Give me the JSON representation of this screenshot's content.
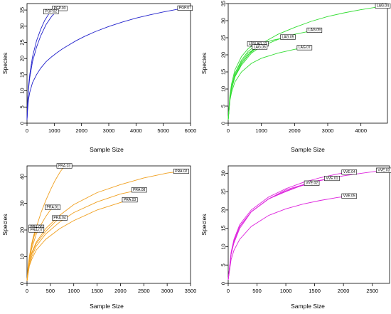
{
  "chart_data": [
    {
      "type": "line",
      "xlabel": "Sample Size",
      "ylabel": "Species",
      "xlim": [
        0,
        6000
      ],
      "ylim": [
        0,
        37
      ],
      "xticks": [
        0,
        1000,
        2000,
        3000,
        4000,
        5000,
        6000
      ],
      "yticks": [
        0,
        5,
        10,
        15,
        20,
        25,
        30,
        35
      ],
      "color": "#2222cc",
      "series": [
        {
          "name": "PGP.07",
          "x": [
            0,
            20,
            50,
            100,
            200,
            350,
            500,
            700,
            900,
            1100,
            1300,
            1500,
            1800,
            2100,
            2500,
            3000,
            3500,
            4000,
            4500,
            5000,
            5500,
            5800
          ],
          "y": [
            1,
            4,
            7,
            9.5,
            12.5,
            15,
            17,
            19,
            20.5,
            21.8,
            23,
            24,
            25.5,
            26.8,
            28.3,
            29.9,
            31.3,
            32.5,
            33.5,
            34.4,
            35.2,
            35.6
          ]
        },
        {
          "name": "PGP.03",
          "x": [
            0,
            20,
            50,
            100,
            200,
            350,
            500,
            700,
            900,
            1100,
            1200
          ],
          "y": [
            1,
            6,
            10,
            14,
            19,
            23.5,
            27,
            30.5,
            33,
            34.8,
            35.5
          ]
        },
        {
          "name": "PGP.02",
          "x": [
            0,
            20,
            50,
            100,
            200,
            350,
            500,
            650,
            800,
            880
          ],
          "y": [
            1,
            6,
            11,
            15,
            20.5,
            25.5,
            29,
            31.8,
            33.8,
            34.5
          ]
        }
      ]
    },
    {
      "type": "line",
      "xlabel": "Sample Size",
      "ylabel": "Species",
      "xlim": [
        0,
        4800
      ],
      "ylim": [
        0,
        35
      ],
      "xticks": [
        0,
        1000,
        2000,
        3000,
        4000
      ],
      "yticks": [
        0,
        5,
        10,
        15,
        20,
        25,
        30,
        35
      ],
      "color": "#33dd33",
      "series": [
        {
          "name": "LAG.04",
          "x": [
            0,
            50,
            100,
            200,
            400,
            700,
            1000,
            1500,
            2000,
            2500,
            3000,
            3500,
            4000,
            4500,
            4700
          ],
          "y": [
            1,
            7,
            10,
            13.5,
            17.5,
            21,
            23.3,
            26,
            28,
            29.8,
            31.2,
            32.3,
            33.2,
            34,
            34.3
          ]
        },
        {
          "name": "LAG.09",
          "x": [
            0,
            50,
            100,
            200,
            400,
            700,
            1000,
            1500,
            2000,
            2500,
            2600
          ],
          "y": [
            1,
            7,
            10,
            13.5,
            17,
            20.5,
            22.5,
            24.5,
            26,
            27,
            27.2
          ]
        },
        {
          "name": "LAG.05",
          "x": [
            0,
            50,
            100,
            200,
            400,
            700,
            1000,
            1300,
            1800
          ],
          "y": [
            1,
            7,
            10,
            13.5,
            17.5,
            21,
            23,
            24.2,
            25.2
          ]
        },
        {
          "name": "LAG.07",
          "x": [
            0,
            50,
            100,
            200,
            400,
            700,
            1000,
            1500,
            2000,
            2300
          ],
          "y": [
            1,
            6.5,
            9,
            12,
            15,
            17.5,
            19,
            20.5,
            21.6,
            22.1
          ]
        },
        {
          "name": "LAG.11",
          "x": [
            0,
            50,
            100,
            200,
            400,
            600,
            800
          ],
          "y": [
            1,
            8,
            11.5,
            15.5,
            19.5,
            21.8,
            23.2
          ]
        },
        {
          "name": "BLAG.13",
          "x": [
            0,
            50,
            100,
            200,
            400,
            600,
            800,
            950
          ],
          "y": [
            1,
            7.5,
            10.5,
            14.5,
            18.5,
            21,
            22.5,
            23.2
          ]
        },
        {
          "name": "LAG",
          "x": [
            0,
            50,
            100,
            200,
            400,
            600,
            800,
            950
          ],
          "y": [
            1,
            7.5,
            10.5,
            14.5,
            18,
            20.5,
            21.8,
            22.3
          ]
        },
        {
          "name": "LAG.06",
          "x": [
            0,
            50,
            100,
            200,
            400,
            600,
            800,
            950
          ],
          "y": [
            1,
            7,
            10,
            14,
            17.5,
            20,
            21.6,
            22.3
          ]
        }
      ]
    },
    {
      "type": "line",
      "xlabel": "Sample Size",
      "ylabel": "Species",
      "xlim": [
        0,
        3500
      ],
      "ylim": [
        0,
        44
      ],
      "xticks": [
        0,
        500,
        1000,
        1500,
        2000,
        2500,
        3000,
        3500
      ],
      "yticks": [
        0,
        10,
        20,
        30,
        40
      ],
      "color": "#f0a020",
      "series": [
        {
          "name": "PRA.03",
          "x": [
            0,
            20,
            50,
            100,
            200,
            300,
            400,
            500,
            600,
            700,
            800
          ],
          "y": [
            1,
            6,
            10,
            14.5,
            21,
            26.5,
            31,
            35,
            38.5,
            41.5,
            44
          ]
        },
        {
          "name": "PRA.02",
          "x": [
            0,
            50,
            100,
            200,
            400,
            700,
            1000,
            1500,
            2000,
            2500,
            3000,
            3300
          ],
          "y": [
            1,
            8,
            11.5,
            15.5,
            20.5,
            25.5,
            29.5,
            34,
            37,
            39.5,
            41.3,
            42
          ]
        },
        {
          "name": "PRA.08",
          "x": [
            0,
            50,
            100,
            200,
            400,
            700,
            1000,
            1500,
            2000,
            2400
          ],
          "y": [
            1,
            7,
            10,
            14,
            18.5,
            23,
            26.5,
            30.5,
            33.5,
            35
          ]
        },
        {
          "name": "PRA.03",
          "x": [
            0,
            50,
            100,
            200,
            400,
            700,
            1000,
            1500,
            2000,
            2200
          ],
          "y": [
            1,
            6.5,
            9,
            12.5,
            16.5,
            20.5,
            23.5,
            27.5,
            30.3,
            31.3
          ]
        },
        {
          "name": "PRA.01",
          "x": [
            0,
            50,
            100,
            200,
            300,
            400,
            500,
            550
          ],
          "y": [
            1,
            9,
            13,
            18.5,
            22,
            25,
            27.5,
            28.5
          ]
        },
        {
          "name": "PRA.04",
          "x": [
            0,
            50,
            100,
            200,
            400,
            600,
            700
          ],
          "y": [
            1,
            8,
            11,
            15,
            19.5,
            23,
            24.5
          ]
        },
        {
          "name": "PRA.06",
          "x": [
            0,
            50,
            100,
            150,
            200
          ],
          "y": [
            1,
            10,
            15,
            18.5,
            21
          ]
        },
        {
          "name": "PRA.07",
          "x": [
            0,
            50,
            100,
            150,
            200
          ],
          "y": [
            1,
            9,
            14,
            17.5,
            20
          ]
        }
      ]
    },
    {
      "type": "line",
      "xlabel": "Sample Size",
      "ylabel": "Species",
      "xlim": [
        0,
        2800
      ],
      "ylim": [
        0,
        32
      ],
      "xticks": [
        0,
        500,
        1000,
        1500,
        2000,
        2500
      ],
      "yticks": [
        0,
        5,
        10,
        15,
        20,
        25,
        30
      ],
      "color": "#dd22dd",
      "series": [
        {
          "name": "VVE.03",
          "x": [
            0,
            50,
            100,
            200,
            400,
            700,
            1000,
            1500,
            2000,
            2500,
            2700
          ],
          "y": [
            1,
            8,
            11,
            15,
            19.5,
            23,
            25.5,
            27.8,
            29.3,
            30.4,
            30.8
          ]
        },
        {
          "name": "VVE.04",
          "x": [
            0,
            50,
            100,
            200,
            400,
            700,
            1000,
            1300,
            1600,
            1900,
            2100
          ],
          "y": [
            1,
            8.5,
            12,
            16,
            20,
            23.5,
            25.8,
            27.5,
            28.8,
            29.8,
            30.3
          ]
        },
        {
          "name": "VVE.01",
          "x": [
            0,
            50,
            100,
            200,
            400,
            700,
            1000,
            1300,
            1600,
            1800
          ],
          "y": [
            1,
            8,
            11.5,
            15.5,
            19.5,
            23,
            25,
            26.8,
            28,
            28.6
          ]
        },
        {
          "name": "VVE.02",
          "x": [
            0,
            50,
            100,
            200,
            400,
            700,
            1000,
            1200,
            1450
          ],
          "y": [
            1,
            8,
            11.5,
            15.5,
            19.5,
            23,
            25.2,
            26.3,
            27.3
          ]
        },
        {
          "name": "VVE.05",
          "x": [
            0,
            50,
            100,
            200,
            400,
            700,
            1000,
            1300,
            1600,
            1900,
            2100
          ],
          "y": [
            1,
            6.5,
            9,
            12,
            15.5,
            18.5,
            20.3,
            21.6,
            22.6,
            23.4,
            23.8
          ]
        }
      ]
    }
  ]
}
